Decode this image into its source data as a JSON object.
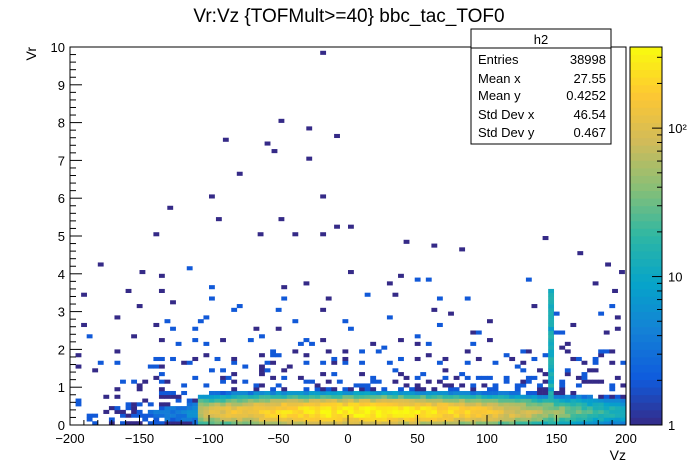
{
  "chart_data": {
    "type": "heatmap",
    "title": "Vr:Vz {TOFMult>=40} bbc_tac_TOF0",
    "xlabel": "Vz",
    "ylabel": "Vr",
    "xlim": [
      -200,
      200
    ],
    "ylim": [
      0,
      10
    ],
    "x_ticks": [
      "−200",
      "−150",
      "−100",
      "−50",
      "0",
      "50",
      "100",
      "150",
      "200"
    ],
    "y_ticks": [
      "0",
      "1",
      "2",
      "3",
      "4",
      "5",
      "6",
      "7",
      "8",
      "9",
      "10"
    ],
    "bin_width": {
      "x": 4,
      "y": 0.1
    },
    "z_scale": "log",
    "z_labels": [
      "1",
      "10",
      "10²"
    ],
    "colormap": [
      "#352a87",
      "#0f5cdd",
      "#1481d6",
      "#06a4ca",
      "#2eb7a4",
      "#87bf77",
      "#d1bb59",
      "#fec832",
      "#f9fb0e"
    ],
    "dense_core": {
      "description_values": "Gaussian core near Vr 0.1-0.6 spanning Vz -110 to 200",
      "peak_vz": 10,
      "peak_vr": 0.3,
      "peak_counts": 320
    },
    "sparse_bins": [
      [
        -20,
        9.8,
        1
      ],
      [
        -50,
        8.0,
        1
      ],
      [
        -30,
        7.8,
        1
      ],
      [
        -10,
        7.6,
        1
      ],
      [
        -90,
        7.5,
        1
      ],
      [
        -60,
        7.4,
        1
      ],
      [
        -55,
        7.2,
        1
      ],
      [
        -30,
        7.0,
        1
      ],
      [
        -80,
        6.6,
        1
      ],
      [
        -100,
        6.0,
        1
      ],
      [
        -20,
        6.0,
        1
      ],
      [
        -130,
        5.7,
        1
      ],
      [
        -50,
        5.4,
        1
      ],
      [
        -95,
        5.4,
        1
      ],
      [
        -10,
        5.2,
        1
      ],
      [
        0,
        5.2,
        1
      ],
      [
        -140,
        5.0,
        1
      ],
      [
        -65,
        5.0,
        1
      ],
      [
        -40,
        5.0,
        1
      ],
      [
        -20,
        5.0,
        1
      ],
      [
        40,
        4.8,
        1
      ],
      [
        60,
        4.7,
        1
      ],
      [
        -180,
        4.2,
        1
      ],
      [
        80,
        4.6,
        1
      ],
      [
        140,
        4.9,
        1
      ],
      [
        165,
        4.5,
        1
      ],
      [
        -150,
        4.0,
        1
      ],
      [
        185,
        4.2,
        1
      ],
      [
        195,
        4.0,
        1
      ],
      [
        190,
        3.5,
        1
      ]
    ],
    "stats_box": {
      "title": "h2",
      "rows": [
        {
          "label": "Entries",
          "value": "38998"
        },
        {
          "label": "Mean x",
          "value": "27.55"
        },
        {
          "label": "Mean y",
          "value": "0.4252"
        },
        {
          "label": "Std Dev x",
          "value": "46.54"
        },
        {
          "label": "Std Dev y",
          "value": "0.467"
        }
      ]
    }
  }
}
